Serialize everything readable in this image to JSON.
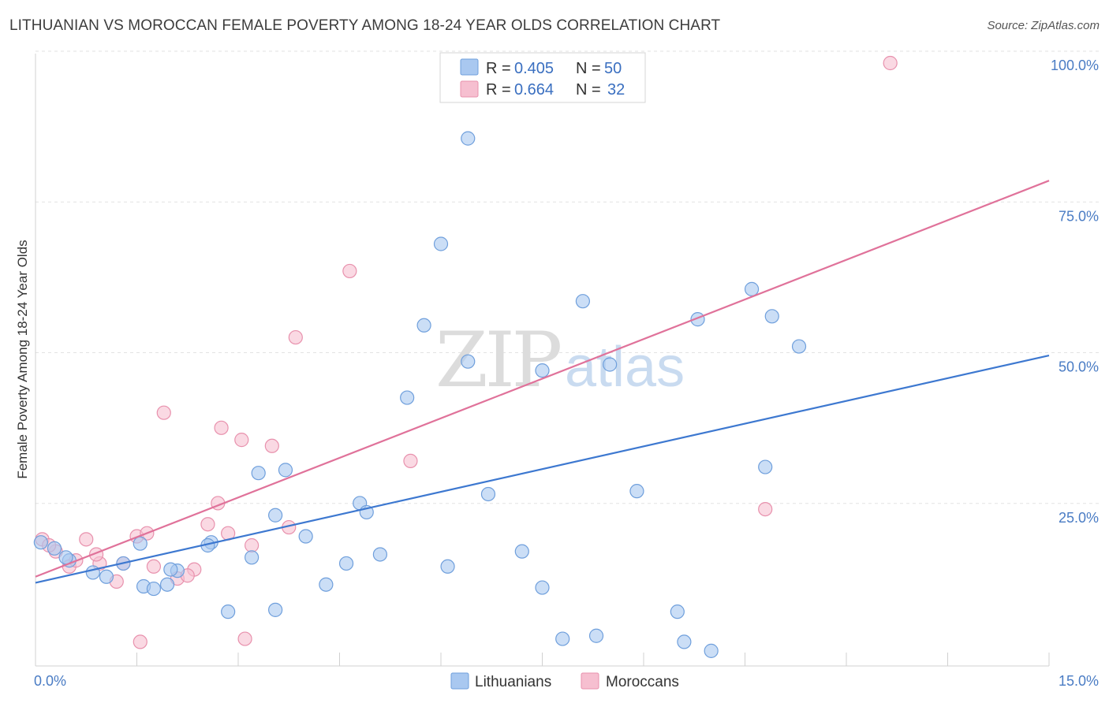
{
  "title": "LITHUANIAN VS MOROCCAN FEMALE POVERTY AMONG 18-24 YEAR OLDS CORRELATION CHART",
  "source": "Source: ZipAtlas.com",
  "watermark": {
    "zip": "ZIP",
    "atlas": "atlas"
  },
  "colors": {
    "lithuanians_fill": "#a9c8f0",
    "lithuanians_stroke": "#6f9fdc",
    "lithuanians_line": "#3d78d0",
    "moroccans_fill": "#f6bfd0",
    "moroccans_stroke": "#e891ad",
    "moroccans_line": "#e0729a",
    "grid": "#e2e2e2",
    "axis_text": "#4a7cc4"
  },
  "legend": {
    "rows": [
      {
        "r_label": "R =",
        "r_value": "0.405",
        "n_label": "N =",
        "n_value": "50"
      },
      {
        "r_label": "R =",
        "r_value": "0.664",
        "n_label": "N =",
        "n_value": "32"
      }
    ]
  },
  "chart_data": {
    "type": "scatter",
    "title": "LITHUANIAN VS MOROCCAN FEMALE POVERTY AMONG 18-24 YEAR OLDS CORRELATION CHART",
    "xlabel": "",
    "ylabel": "Female Poverty Among 18-24 Year Olds",
    "xlim": [
      0,
      15
    ],
    "ylim": [
      0,
      100
    ],
    "x_tick_labels": [
      "0.0%",
      "15.0%"
    ],
    "y_ticks": [
      25,
      50,
      75,
      100
    ],
    "y_tick_labels": [
      "25.0%",
      "50.0%",
      "75.0%",
      "100.0%"
    ],
    "grid": true,
    "legend_position": "top-center",
    "series": [
      {
        "name": "Lithuanians",
        "r": 0.405,
        "n": 50,
        "trend": {
          "x": [
            0,
            15
          ],
          "y": [
            13.8,
            51.5
          ]
        },
        "points": [
          {
            "x": 0.08,
            "y": 20.5
          },
          {
            "x": 0.28,
            "y": 19.5
          },
          {
            "x": 0.5,
            "y": 17.5
          },
          {
            "x": 0.85,
            "y": 15.5
          },
          {
            "x": 1.05,
            "y": 14.8
          },
          {
            "x": 1.3,
            "y": 17.0
          },
          {
            "x": 1.6,
            "y": 13.2
          },
          {
            "x": 1.75,
            "y": 12.8
          },
          {
            "x": 1.95,
            "y": 13.5
          },
          {
            "x": 2.1,
            "y": 15.8
          },
          {
            "x": 2.6,
            "y": 20.5
          },
          {
            "x": 2.85,
            "y": 9.0
          },
          {
            "x": 3.2,
            "y": 18.0
          },
          {
            "x": 3.55,
            "y": 25.0
          },
          {
            "x": 3.55,
            "y": 9.3
          },
          {
            "x": 3.3,
            "y": 32.0
          },
          {
            "x": 4.0,
            "y": 21.5
          },
          {
            "x": 4.3,
            "y": 13.5
          },
          {
            "x": 4.6,
            "y": 17.0
          },
          {
            "x": 4.8,
            "y": 27.0
          },
          {
            "x": 5.1,
            "y": 18.5
          },
          {
            "x": 5.5,
            "y": 44.5
          },
          {
            "x": 5.75,
            "y": 56.5
          },
          {
            "x": 6.0,
            "y": 70.0
          },
          {
            "x": 6.1,
            "y": 16.5
          },
          {
            "x": 6.4,
            "y": 50.5
          },
          {
            "x": 6.4,
            "y": 87.5
          },
          {
            "x": 6.7,
            "y": 28.5
          },
          {
            "x": 7.2,
            "y": 19.0
          },
          {
            "x": 7.5,
            "y": 49.0
          },
          {
            "x": 7.5,
            "y": 13.0
          },
          {
            "x": 7.8,
            "y": 4.5
          },
          {
            "x": 8.1,
            "y": 60.5
          },
          {
            "x": 8.3,
            "y": 5.0
          },
          {
            "x": 8.5,
            "y": 50.0
          },
          {
            "x": 8.9,
            "y": 29.0
          },
          {
            "x": 9.5,
            "y": 9.0
          },
          {
            "x": 9.6,
            "y": 4.0
          },
          {
            "x": 9.8,
            "y": 57.5
          },
          {
            "x": 10.0,
            "y": 2.5
          },
          {
            "x": 10.6,
            "y": 62.5
          },
          {
            "x": 10.8,
            "y": 33.0
          },
          {
            "x": 10.9,
            "y": 58.0
          },
          {
            "x": 11.3,
            "y": 53.0
          },
          {
            "x": 2.55,
            "y": 20.0
          },
          {
            "x": 2.0,
            "y": 16.0
          },
          {
            "x": 1.55,
            "y": 20.3
          },
          {
            "x": 0.45,
            "y": 18.0
          },
          {
            "x": 3.7,
            "y": 32.5
          },
          {
            "x": 4.9,
            "y": 25.5
          }
        ]
      },
      {
        "name": "Moroccans",
        "r": 0.664,
        "n": 32,
        "trend": {
          "x": [
            0,
            15
          ],
          "y": [
            14.8,
            80.5
          ]
        },
        "points": [
          {
            "x": 0.1,
            "y": 21.0
          },
          {
            "x": 0.3,
            "y": 19.0
          },
          {
            "x": 0.5,
            "y": 16.5
          },
          {
            "x": 0.6,
            "y": 17.5
          },
          {
            "x": 0.75,
            "y": 21.0
          },
          {
            "x": 0.95,
            "y": 17.0
          },
          {
            "x": 1.2,
            "y": 14.0
          },
          {
            "x": 1.3,
            "y": 17.0
          },
          {
            "x": 1.5,
            "y": 21.5
          },
          {
            "x": 1.55,
            "y": 4.0
          },
          {
            "x": 1.75,
            "y": 16.5
          },
          {
            "x": 1.9,
            "y": 42.0
          },
          {
            "x": 2.1,
            "y": 14.5
          },
          {
            "x": 2.35,
            "y": 16.0
          },
          {
            "x": 2.55,
            "y": 23.5
          },
          {
            "x": 2.7,
            "y": 27.0
          },
          {
            "x": 2.75,
            "y": 39.5
          },
          {
            "x": 2.85,
            "y": 22.0
          },
          {
            "x": 3.05,
            "y": 37.5
          },
          {
            "x": 3.1,
            "y": 4.5
          },
          {
            "x": 3.2,
            "y": 20.0
          },
          {
            "x": 3.5,
            "y": 36.5
          },
          {
            "x": 3.75,
            "y": 23.0
          },
          {
            "x": 3.85,
            "y": 54.5
          },
          {
            "x": 4.65,
            "y": 65.5
          },
          {
            "x": 5.55,
            "y": 34.0
          },
          {
            "x": 10.8,
            "y": 26.0
          },
          {
            "x": 12.65,
            "y": 100.0
          },
          {
            "x": 0.9,
            "y": 18.5
          },
          {
            "x": 1.65,
            "y": 22.0
          },
          {
            "x": 2.25,
            "y": 15.0
          },
          {
            "x": 0.2,
            "y": 20.0
          }
        ]
      }
    ]
  },
  "bottom_legend": {
    "items": [
      "Lithuanians",
      "Moroccans"
    ]
  }
}
